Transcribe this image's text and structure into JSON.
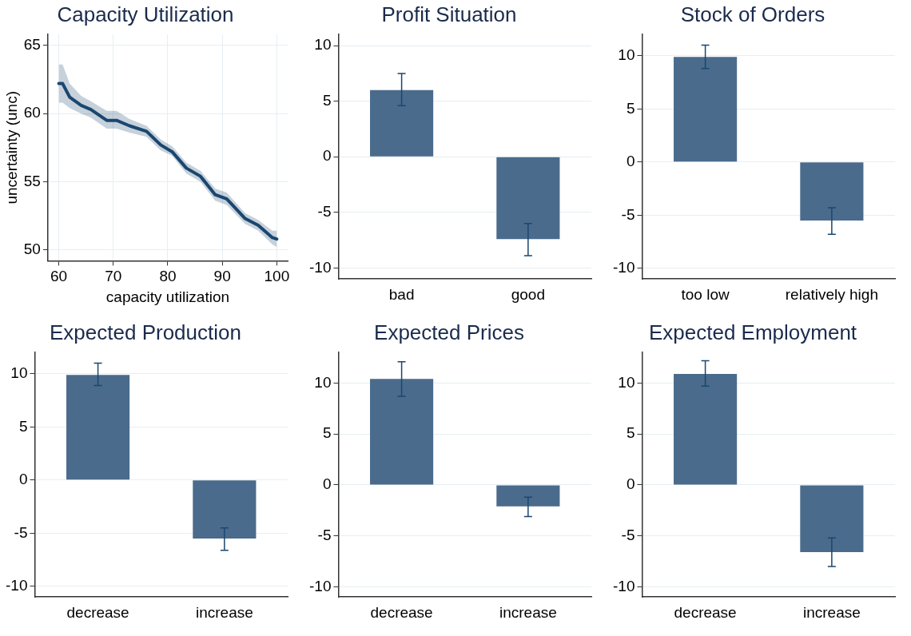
{
  "chart_data": [
    {
      "type": "line",
      "title": "Capacity Utilization",
      "xlabel": "capacity utilization",
      "ylabel": "uncertainty (unc)",
      "xlim": [
        58,
        102
      ],
      "xticks": [
        60,
        70,
        80,
        90,
        100
      ],
      "ylim": [
        49.2,
        65.8
      ],
      "yticks": [
        50,
        55,
        60,
        65
      ],
      "grid": true,
      "marker": "none",
      "series": [
        {
          "color": "#1a476f",
          "x": [
            60,
            60.7,
            62,
            64.1,
            65.9,
            68.8,
            70.6,
            73,
            76.1,
            78.7,
            80.8,
            83.4,
            86,
            88.7,
            90.8,
            94.2,
            96.6,
            99.2,
            100
          ],
          "values": [
            62.2,
            62.2,
            61.2,
            60.6,
            60.3,
            59.5,
            59.5,
            59.1,
            58.7,
            57.7,
            57.2,
            56.0,
            55.4,
            54.05,
            53.75,
            52.3,
            51.8,
            50.9,
            50.8
          ],
          "lower": [
            60.8,
            60.8,
            60.4,
            60.0,
            59.7,
            58.9,
            58.9,
            58.6,
            58.3,
            57.3,
            56.9,
            55.6,
            55.0,
            53.6,
            53.3,
            51.9,
            51.4,
            50.4,
            50.2
          ],
          "upper": [
            63.6,
            63.6,
            62.2,
            61.3,
            60.9,
            60.2,
            60.2,
            59.6,
            59.1,
            58.1,
            57.6,
            56.4,
            55.8,
            54.5,
            54.2,
            52.7,
            52.2,
            51.4,
            51.4
          ]
        }
      ]
    },
    {
      "type": "bar",
      "title": "Profit Situation",
      "categories": [
        "bad",
        "good"
      ],
      "values": [
        6.0,
        -7.4
      ],
      "errors": [
        [
          4.6,
          7.5
        ],
        [
          -8.9,
          -6.0
        ]
      ],
      "color": "#4a6b8c",
      "ylim": [
        -11,
        11
      ],
      "yticks": [
        -10,
        -5,
        0,
        5,
        10
      ],
      "grid": "y"
    },
    {
      "type": "bar",
      "title": "Stock of Orders",
      "categories": [
        "too low",
        "relatively high"
      ],
      "values": [
        9.9,
        -5.5
      ],
      "errors": [
        [
          8.8,
          11.0
        ],
        [
          -6.8,
          -4.3
        ]
      ],
      "color": "#4a6b8c",
      "ylim": [
        -11,
        12
      ],
      "yticks": [
        -10,
        -5,
        0,
        5,
        10
      ],
      "grid": "y"
    },
    {
      "type": "bar",
      "title": "Expected Production",
      "categories": [
        "decrease",
        "increase"
      ],
      "values": [
        9.9,
        -5.5
      ],
      "errors": [
        [
          8.9,
          11.0
        ],
        [
          -6.6,
          -4.5
        ]
      ],
      "color": "#4a6b8c",
      "ylim": [
        -11,
        12
      ],
      "yticks": [
        -10,
        -5,
        0,
        5,
        10
      ],
      "grid": "y"
    },
    {
      "type": "bar",
      "title": "Expected Prices",
      "categories": [
        "decrease",
        "increase"
      ],
      "values": [
        10.4,
        -2.1
      ],
      "errors": [
        [
          8.7,
          12.1
        ],
        [
          -3.1,
          -1.2
        ]
      ],
      "color": "#4a6b8c",
      "ylim": [
        -11,
        13
      ],
      "yticks": [
        -10,
        -5,
        0,
        5,
        10
      ],
      "grid": "y"
    },
    {
      "type": "bar",
      "title": "Expected Employment",
      "categories": [
        "decrease",
        "increase"
      ],
      "values": [
        10.9,
        -6.6
      ],
      "errors": [
        [
          9.7,
          12.2
        ],
        [
          -8.0,
          -5.2
        ]
      ],
      "color": "#4a6b8c",
      "ylim": [
        -11,
        13
      ],
      "yticks": [
        -10,
        -5,
        0,
        5,
        10
      ],
      "grid": "y"
    }
  ]
}
